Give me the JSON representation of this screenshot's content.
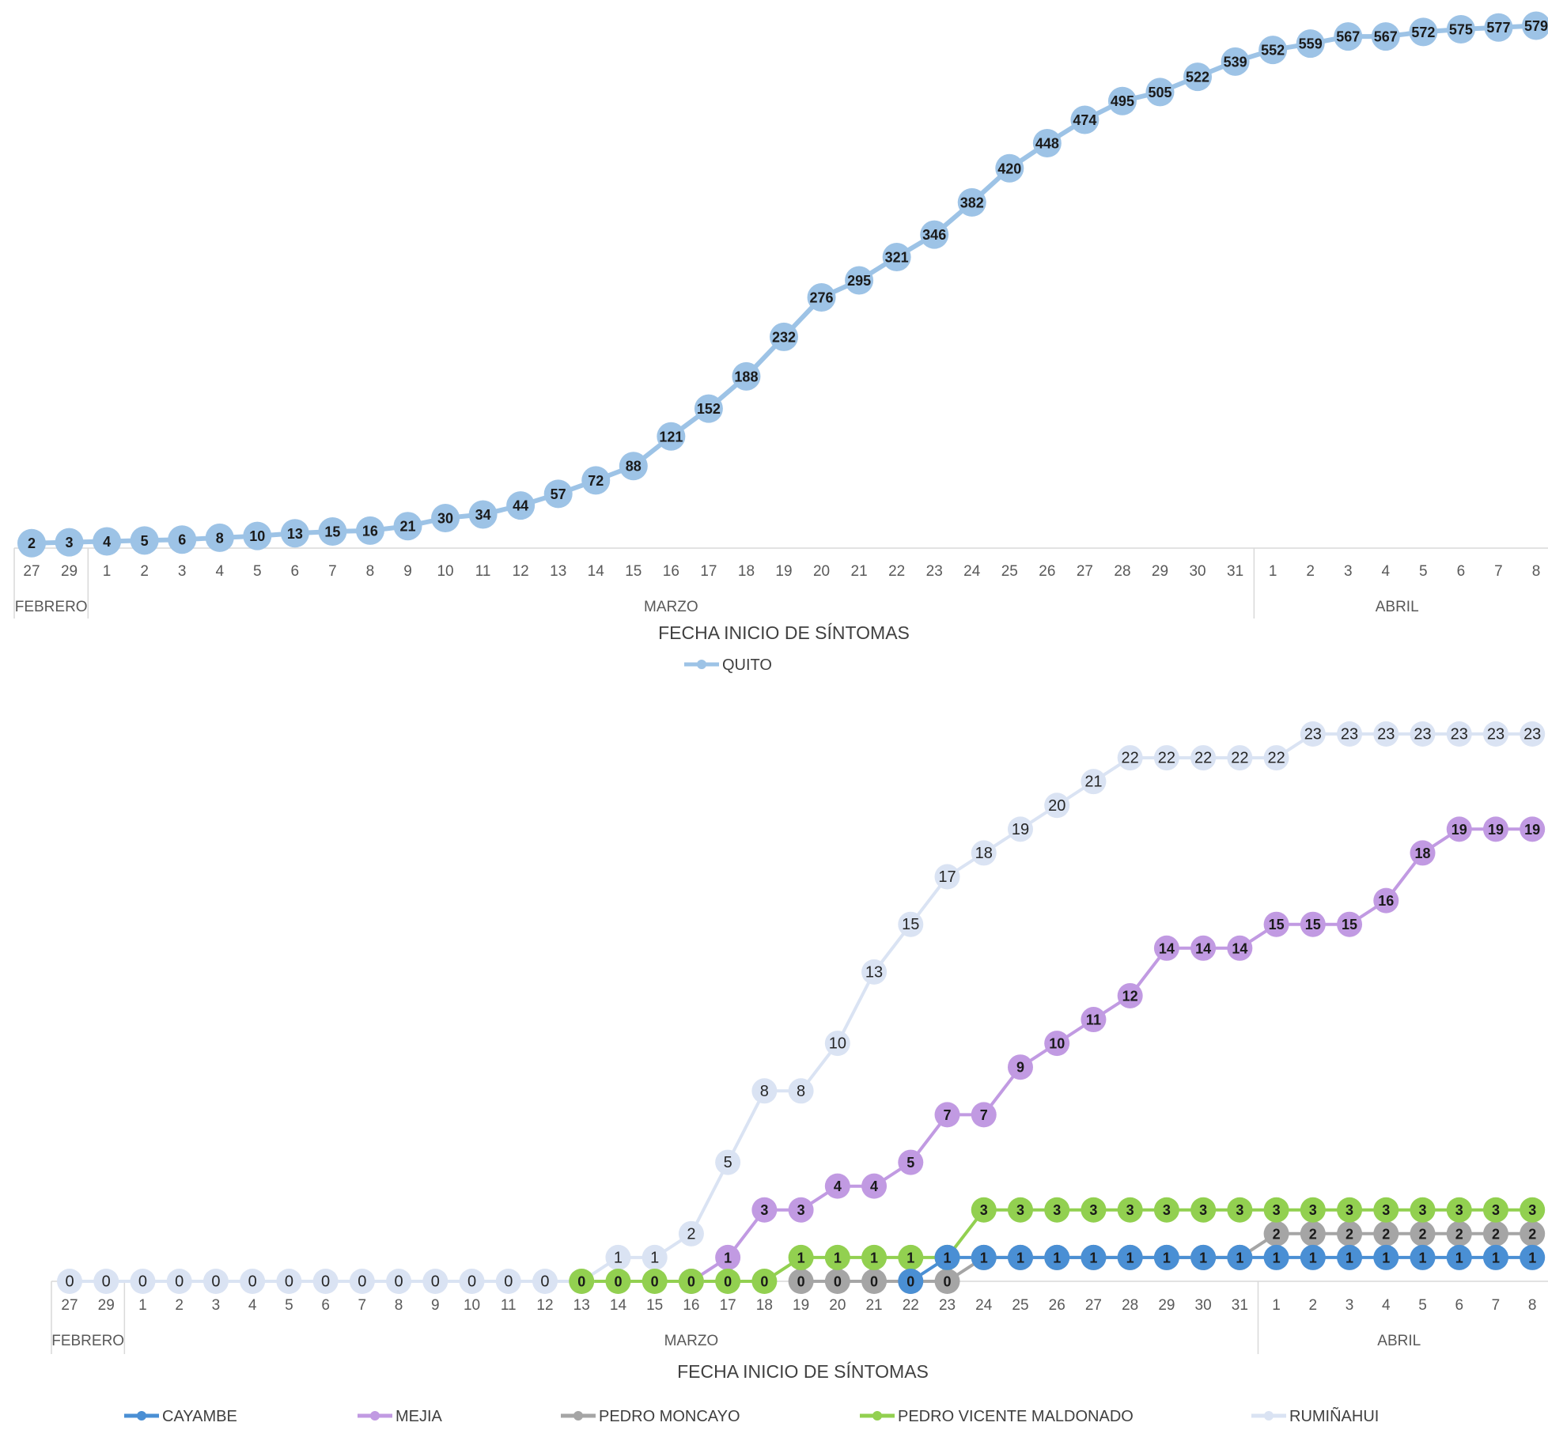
{
  "chart_data": [
    {
      "type": "line",
      "xlabel": "FECHA INICIO DE SÍNTOMAS",
      "categories": [
        "27",
        "29",
        "1",
        "2",
        "3",
        "4",
        "5",
        "6",
        "7",
        "8",
        "9",
        "10",
        "11",
        "12",
        "13",
        "14",
        "15",
        "16",
        "17",
        "18",
        "19",
        "20",
        "21",
        "22",
        "23",
        "24",
        "25",
        "26",
        "27",
        "28",
        "29",
        "30",
        "31",
        "1",
        "2",
        "3",
        "4",
        "5",
        "6",
        "7",
        "8"
      ],
      "month_groups": [
        {
          "label": "FEBRERO",
          "count": 2
        },
        {
          "label": "MARZO",
          "count": 31
        },
        {
          "label": "ABRIL",
          "count": 8
        }
      ],
      "series": [
        {
          "name": "QUITO",
          "color": "#9dc3e6",
          "values": [
            2,
            3,
            4,
            5,
            6,
            8,
            10,
            13,
            15,
            16,
            21,
            30,
            34,
            44,
            57,
            72,
            88,
            121,
            152,
            188,
            232,
            276,
            295,
            321,
            346,
            382,
            420,
            448,
            474,
            495,
            505,
            522,
            539,
            552,
            559,
            567,
            567,
            572,
            575,
            577,
            579
          ]
        }
      ],
      "ylim": [
        0,
        590
      ],
      "legend_position": "bottom",
      "grid": false
    },
    {
      "type": "line",
      "xlabel": "FECHA INICIO DE SÍNTOMAS",
      "categories": [
        "27",
        "29",
        "1",
        "2",
        "3",
        "4",
        "5",
        "6",
        "7",
        "8",
        "9",
        "10",
        "11",
        "12",
        "13",
        "14",
        "15",
        "16",
        "17",
        "18",
        "19",
        "20",
        "21",
        "22",
        "23",
        "24",
        "25",
        "26",
        "27",
        "28",
        "29",
        "30",
        "31",
        "1",
        "2",
        "3",
        "4",
        "5",
        "6",
        "7",
        "8"
      ],
      "month_groups": [
        {
          "label": "FEBRERO",
          "count": 2
        },
        {
          "label": "MARZO",
          "count": 31
        },
        {
          "label": "ABRIL",
          "count": 8
        }
      ],
      "series": [
        {
          "name": "CAYAMBE",
          "color": "#4a8fd4",
          "values": [
            null,
            null,
            null,
            null,
            null,
            null,
            null,
            null,
            null,
            null,
            null,
            null,
            null,
            null,
            null,
            null,
            null,
            null,
            null,
            null,
            null,
            null,
            null,
            0,
            1,
            1,
            1,
            1,
            1,
            1,
            1,
            1,
            1,
            1,
            1,
            1,
            1,
            1,
            1,
            1,
            1
          ]
        },
        {
          "name": "MEJIA",
          "color": "#c19ae2",
          "values": [
            null,
            null,
            null,
            null,
            null,
            null,
            null,
            null,
            null,
            null,
            null,
            null,
            null,
            null,
            null,
            null,
            null,
            0,
            1,
            3,
            3,
            4,
            4,
            5,
            7,
            7,
            9,
            10,
            11,
            12,
            14,
            14,
            14,
            15,
            15,
            15,
            16,
            18,
            19,
            19,
            19
          ]
        },
        {
          "name": "PEDRO MONCAYO",
          "color": "#a5a5a5",
          "values": [
            null,
            null,
            null,
            null,
            null,
            null,
            null,
            null,
            null,
            null,
            null,
            null,
            null,
            null,
            null,
            null,
            null,
            null,
            null,
            null,
            0,
            0,
            0,
            0,
            0,
            1,
            1,
            1,
            1,
            1,
            1,
            1,
            1,
            2,
            2,
            2,
            2,
            2,
            2,
            2,
            2
          ]
        },
        {
          "name": "PEDRO VICENTE MALDONADO",
          "color": "#92d050",
          "values": [
            null,
            null,
            null,
            null,
            null,
            null,
            null,
            null,
            null,
            null,
            null,
            null,
            null,
            null,
            0,
            0,
            0,
            0,
            0,
            0,
            1,
            1,
            1,
            1,
            1,
            3,
            3,
            3,
            3,
            3,
            3,
            3,
            3,
            3,
            3,
            3,
            3,
            3,
            3,
            3,
            3
          ]
        },
        {
          "name": "RUMIÑAHUI",
          "color": "#dae3f3",
          "values": [
            0,
            0,
            0,
            0,
            0,
            0,
            0,
            0,
            0,
            0,
            0,
            0,
            0,
            0,
            0,
            1,
            1,
            2,
            5,
            8,
            8,
            10,
            13,
            15,
            17,
            18,
            19,
            20,
            21,
            22,
            22,
            22,
            22,
            22,
            23,
            23,
            23,
            23,
            23,
            23,
            23
          ]
        }
      ],
      "ylim": [
        0,
        23
      ],
      "legend_position": "bottom",
      "grid": false
    }
  ]
}
